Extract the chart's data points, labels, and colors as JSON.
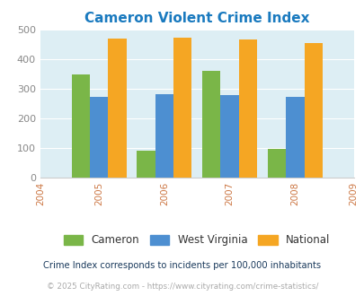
{
  "title": "Cameron Violent Crime Index",
  "title_color": "#1a7abf",
  "years": [
    2005,
    2006,
    2007,
    2008
  ],
  "x_tick_labels": [
    "2004",
    "2005",
    "2006",
    "2007",
    "2008",
    "2009"
  ],
  "cameron": [
    347,
    90,
    360,
    97
  ],
  "west_virginia": [
    274,
    283,
    278,
    274
  ],
  "national": [
    469,
    474,
    467,
    455
  ],
  "cameron_color": "#7ab648",
  "wv_color": "#4d8fd1",
  "national_color": "#f5a623",
  "bg_color": "#ddeef4",
  "ylim": [
    0,
    500
  ],
  "yticks": [
    0,
    100,
    200,
    300,
    400,
    500
  ],
  "bar_width": 0.28,
  "legend_labels": [
    "Cameron",
    "West Virginia",
    "National"
  ],
  "footnote1": "Crime Index corresponds to incidents per 100,000 inhabitants",
  "footnote2": "© 2025 CityRating.com - https://www.cityrating.com/crime-statistics/",
  "footnote1_color": "#1a3a5c",
  "footnote2_color": "#aaaaaa",
  "legend_text_color": "#333333"
}
